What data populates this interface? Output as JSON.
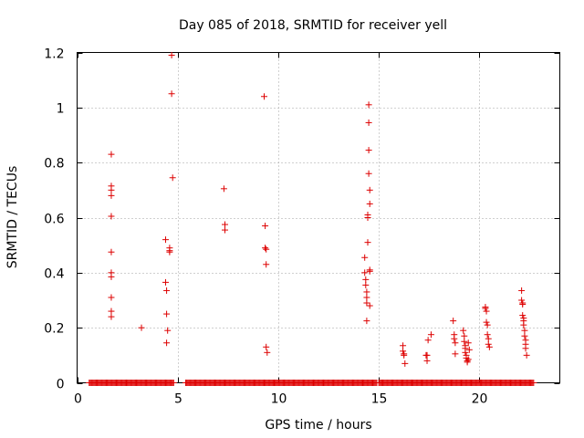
{
  "chart_data": {
    "type": "scatter",
    "title": "Day 085 of 2018, SRMTID for receiver yell",
    "xlabel": "GPS time / hours",
    "ylabel": "SRMTID / TECUs",
    "xlim": [
      0,
      24
    ],
    "ylim": [
      0,
      1.2
    ],
    "xticks": [
      0,
      5,
      10,
      15,
      20
    ],
    "yticks": [
      0,
      0.2,
      0.4,
      0.6,
      0.8,
      1,
      1.2
    ],
    "xtick_labels": [
      "0",
      "5",
      "10",
      "15",
      "20"
    ],
    "ytick_labels": [
      "0",
      "0.2",
      "0.4",
      "0.6",
      "0.8",
      "1",
      "1.2"
    ],
    "grid": true,
    "marker": "+",
    "color": "#dd0000",
    "series": [
      {
        "name": "SRMTID",
        "x": [
          1.7,
          1.7,
          1.7,
          1.7,
          1.7,
          1.7,
          1.7,
          1.7,
          1.7,
          1.7,
          1.7,
          3.2,
          4.4,
          4.4,
          4.45,
          4.45,
          4.45,
          4.5,
          4.6,
          4.6,
          4.6,
          4.7,
          4.7,
          4.75,
          7.3,
          7.35,
          7.35,
          9.3,
          9.35,
          9.35,
          9.4,
          9.4,
          9.4,
          9.45,
          14.3,
          14.3,
          14.35,
          14.35,
          14.4,
          14.4,
          14.4,
          14.4,
          14.45,
          14.45,
          14.45,
          14.5,
          14.5,
          14.5,
          14.5,
          14.55,
          14.55,
          14.55,
          14.55,
          14.55,
          16.2,
          16.2,
          16.25,
          16.25,
          16.3,
          17.35,
          17.4,
          17.4,
          17.45,
          17.6,
          18.7,
          18.75,
          18.75,
          18.8,
          18.8,
          19.2,
          19.25,
          19.25,
          19.3,
          19.3,
          19.3,
          19.35,
          19.35,
          19.4,
          19.4,
          19.45,
          19.45,
          19.5,
          20.3,
          20.3,
          20.35,
          20.35,
          20.4,
          20.4,
          20.45,
          20.45,
          20.5,
          22.1,
          22.1,
          22.15,
          22.15,
          22.15,
          22.2,
          22.2,
          22.2,
          22.25,
          22.25,
          22.3,
          22.3,
          22.3,
          22.35
        ],
        "y": [
          0.83,
          0.715,
          0.7,
          0.68,
          0.605,
          0.475,
          0.4,
          0.385,
          0.31,
          0.26,
          0.24,
          0.2,
          0.52,
          0.365,
          0.335,
          0.25,
          0.145,
          0.19,
          0.49,
          0.48,
          0.475,
          1.19,
          1.05,
          0.745,
          0.705,
          0.575,
          0.555,
          1.04,
          0.57,
          0.49,
          0.485,
          0.43,
          0.13,
          0.11,
          0.455,
          0.4,
          0.375,
          0.355,
          0.33,
          0.31,
          0.29,
          0.225,
          0.51,
          0.61,
          0.6,
          1.01,
          0.945,
          0.845,
          0.76,
          0.7,
          0.65,
          0.41,
          0.405,
          0.28,
          0.135,
          0.115,
          0.105,
          0.1,
          0.07,
          0.1,
          0.08,
          0.1,
          0.155,
          0.175,
          0.225,
          0.175,
          0.16,
          0.145,
          0.105,
          0.19,
          0.17,
          0.15,
          0.135,
          0.125,
          0.11,
          0.1,
          0.09,
          0.08,
          0.075,
          0.085,
          0.145,
          0.12,
          0.275,
          0.27,
          0.26,
          0.22,
          0.21,
          0.175,
          0.16,
          0.14,
          0.13,
          0.335,
          0.3,
          0.29,
          0.285,
          0.245,
          0.235,
          0.225,
          0.21,
          0.19,
          0.17,
          0.155,
          0.14,
          0.125,
          0.1
        ]
      }
    ],
    "baseline_zero_ranges": [
      [
        0.6,
        4.8
      ],
      [
        5.4,
        14.9
      ],
      [
        15.0,
        22.7
      ]
    ]
  }
}
